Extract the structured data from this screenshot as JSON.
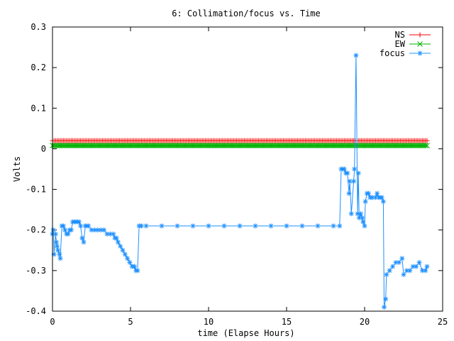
{
  "chart_data": {
    "type": "line",
    "title": "6: Collimation/focus vs. Time",
    "xlabel": "time (Elapse Hours)",
    "ylabel": "Volts",
    "xlim": [
      0,
      25
    ],
    "ylim": [
      -0.4,
      0.3
    ],
    "xticks": [
      "0",
      "5",
      "10",
      "15",
      "20",
      "25"
    ],
    "yticks": [
      "0.3",
      "0.2",
      "0.1",
      "0",
      "-0.1",
      "-0.2",
      "-0.3",
      "-0.4"
    ],
    "legend_position": "top-right",
    "grid": false,
    "series": [
      {
        "name": "NS",
        "color": "#ff0000",
        "marker": "plus",
        "constant": 0.02,
        "x_start": 0,
        "x_end": 24,
        "step": 0.1
      },
      {
        "name": "EW",
        "color": "#00b000",
        "marker": "cross",
        "constant": 0.008,
        "x_start": 0,
        "x_end": 24,
        "step": 0.1
      },
      {
        "name": "focus",
        "color": "#1e90ff",
        "marker": "star",
        "points": [
          [
            0.0,
            -0.21
          ],
          [
            0.05,
            -0.2
          ],
          [
            0.1,
            -0.26
          ],
          [
            0.2,
            -0.21
          ],
          [
            0.25,
            -0.23
          ],
          [
            0.3,
            -0.24
          ],
          [
            0.35,
            -0.25
          ],
          [
            0.45,
            -0.26
          ],
          [
            0.5,
            -0.27
          ],
          [
            0.6,
            -0.19
          ],
          [
            0.7,
            -0.19
          ],
          [
            0.8,
            -0.2
          ],
          [
            0.9,
            -0.21
          ],
          [
            1.0,
            -0.21
          ],
          [
            1.1,
            -0.2
          ],
          [
            1.2,
            -0.2
          ],
          [
            1.3,
            -0.18
          ],
          [
            1.4,
            -0.18
          ],
          [
            1.5,
            -0.18
          ],
          [
            1.6,
            -0.18
          ],
          [
            1.7,
            -0.18
          ],
          [
            1.8,
            -0.19
          ],
          [
            1.9,
            -0.22
          ],
          [
            2.0,
            -0.23
          ],
          [
            2.1,
            -0.19
          ],
          [
            2.2,
            -0.19
          ],
          [
            2.3,
            -0.19
          ],
          [
            2.5,
            -0.2
          ],
          [
            2.7,
            -0.2
          ],
          [
            2.9,
            -0.2
          ],
          [
            3.1,
            -0.2
          ],
          [
            3.3,
            -0.2
          ],
          [
            3.5,
            -0.21
          ],
          [
            3.7,
            -0.21
          ],
          [
            3.9,
            -0.21
          ],
          [
            4.0,
            -0.22
          ],
          [
            4.1,
            -0.22
          ],
          [
            4.2,
            -0.23
          ],
          [
            4.35,
            -0.24
          ],
          [
            4.5,
            -0.25
          ],
          [
            4.65,
            -0.26
          ],
          [
            4.8,
            -0.27
          ],
          [
            4.95,
            -0.28
          ],
          [
            5.1,
            -0.29
          ],
          [
            5.25,
            -0.29
          ],
          [
            5.35,
            -0.3
          ],
          [
            5.45,
            -0.3
          ],
          [
            5.55,
            -0.19
          ],
          [
            5.7,
            -0.19
          ],
          [
            6.0,
            -0.19
          ],
          [
            7.0,
            -0.19
          ],
          [
            8.0,
            -0.19
          ],
          [
            9.0,
            -0.19
          ],
          [
            10.0,
            -0.19
          ],
          [
            11.0,
            -0.19
          ],
          [
            12.0,
            -0.19
          ],
          [
            13.0,
            -0.19
          ],
          [
            14.0,
            -0.19
          ],
          [
            15.0,
            -0.19
          ],
          [
            16.0,
            -0.19
          ],
          [
            17.0,
            -0.19
          ],
          [
            18.0,
            -0.19
          ],
          [
            18.4,
            -0.19
          ],
          [
            18.5,
            -0.05
          ],
          [
            18.6,
            -0.05
          ],
          [
            18.7,
            -0.05
          ],
          [
            18.8,
            -0.06
          ],
          [
            18.9,
            -0.06
          ],
          [
            19.0,
            -0.11
          ],
          [
            19.05,
            -0.08
          ],
          [
            19.15,
            -0.16
          ],
          [
            19.3,
            -0.08
          ],
          [
            19.35,
            -0.05
          ],
          [
            19.45,
            0.23
          ],
          [
            19.55,
            -0.16
          ],
          [
            19.6,
            -0.06
          ],
          [
            19.65,
            -0.17
          ],
          [
            19.75,
            -0.16
          ],
          [
            19.85,
            -0.17
          ],
          [
            19.9,
            -0.18
          ],
          [
            20.0,
            -0.19
          ],
          [
            20.05,
            -0.13
          ],
          [
            20.15,
            -0.11
          ],
          [
            20.25,
            -0.11
          ],
          [
            20.35,
            -0.12
          ],
          [
            20.5,
            -0.12
          ],
          [
            20.7,
            -0.12
          ],
          [
            20.8,
            -0.11
          ],
          [
            20.9,
            -0.12
          ],
          [
            21.0,
            -0.12
          ],
          [
            21.1,
            -0.12
          ],
          [
            21.2,
            -0.13
          ],
          [
            21.25,
            -0.39
          ],
          [
            21.35,
            -0.37
          ],
          [
            21.4,
            -0.31
          ],
          [
            21.6,
            -0.3
          ],
          [
            21.8,
            -0.29
          ],
          [
            22.0,
            -0.28
          ],
          [
            22.2,
            -0.28
          ],
          [
            22.4,
            -0.27
          ],
          [
            22.5,
            -0.31
          ],
          [
            22.7,
            -0.3
          ],
          [
            22.9,
            -0.3
          ],
          [
            23.1,
            -0.29
          ],
          [
            23.3,
            -0.29
          ],
          [
            23.5,
            -0.28
          ],
          [
            23.7,
            -0.3
          ],
          [
            23.9,
            -0.3
          ],
          [
            24.0,
            -0.29
          ]
        ]
      }
    ]
  }
}
